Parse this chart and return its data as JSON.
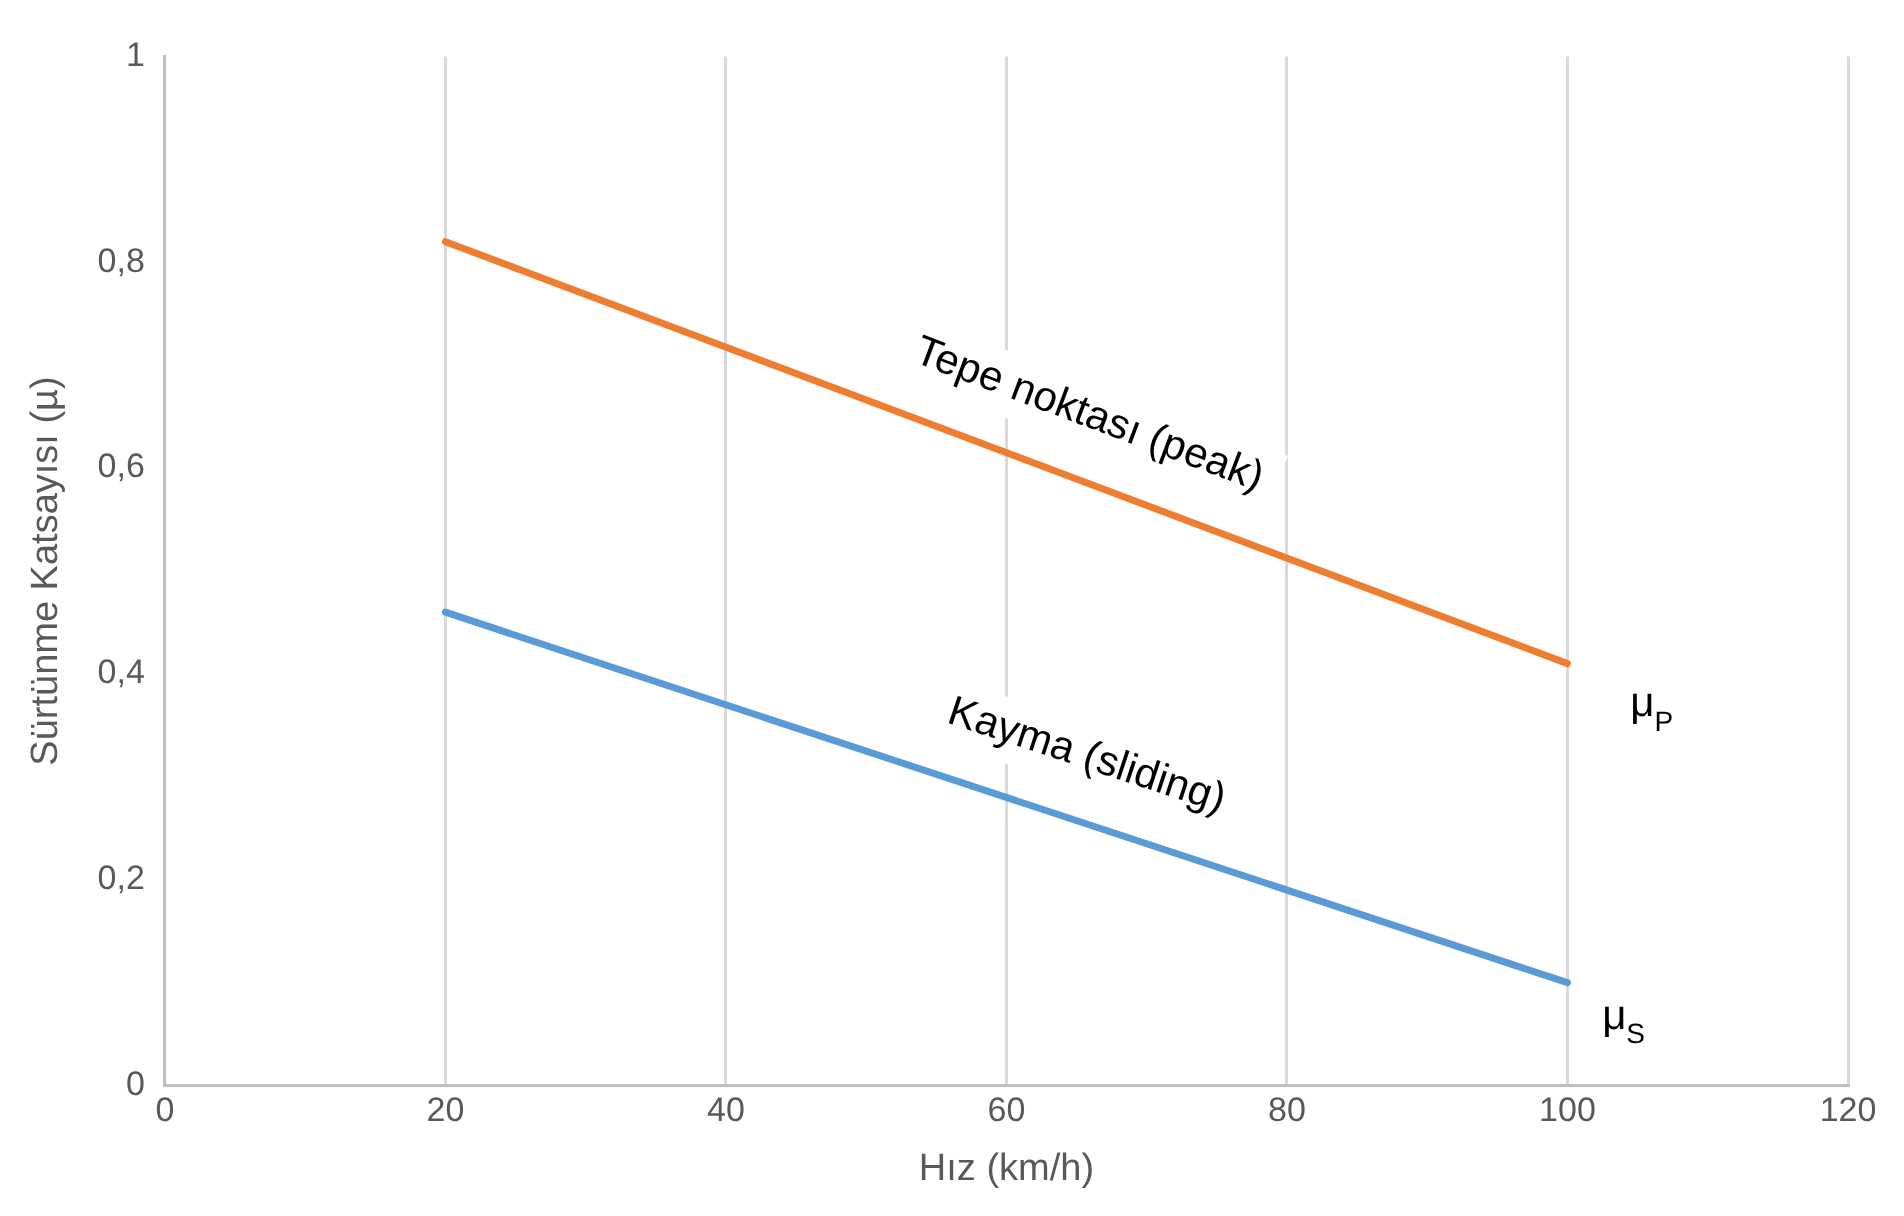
{
  "chart_data": {
    "type": "line",
    "xlabel": "Hız (km/h)",
    "ylabel": "Sürtünme Katsayısı (µ)",
    "x": [
      20,
      100
    ],
    "series": [
      {
        "name": "Tepe noktası (peak)",
        "color": "#ed7d31",
        "values": [
          0.82,
          0.41
        ]
      },
      {
        "name": "Kayma (sliding)",
        "color": "#5b9bd5",
        "values": [
          0.46,
          0.1
        ]
      }
    ],
    "xlim": [
      0,
      120
    ],
    "xticks": [
      0,
      20,
      40,
      60,
      80,
      100,
      120
    ],
    "ylim": [
      0,
      1
    ],
    "yticks": [
      0,
      {
        "value": 0.2,
        "label": "0,2"
      },
      {
        "value": 0.4,
        "label": "0,4"
      },
      {
        "value": 0.6,
        "label": "0,6"
      },
      {
        "value": 0.8,
        "label": "0,8"
      },
      1
    ],
    "grid": "x",
    "legend": false,
    "marker": "none",
    "line_style": "solid",
    "annotations": [
      {
        "text": "μ$_{P}$",
        "x": 106,
        "y": 0.37
      },
      {
        "text": "μ$_{S}$",
        "x": 104,
        "y": 0.066
      }
    ]
  }
}
